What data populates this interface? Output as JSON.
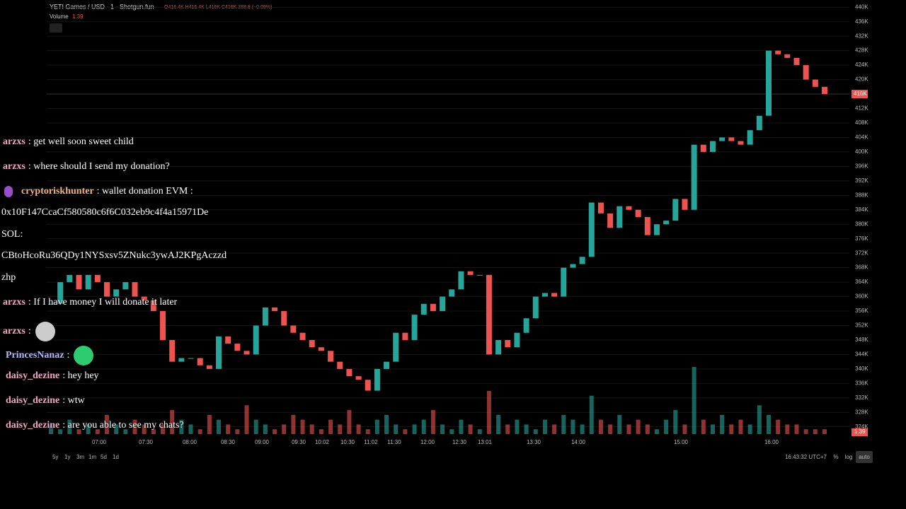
{
  "header": {
    "symbol": "YETI Games / USD · 1 · Shotgun.fun",
    "ohlc": "O416.4K H416.4K L416K C416K 388.8 (−0.09%)",
    "volume_label": "Volume",
    "volume_value": "1.39"
  },
  "chart": {
    "type": "candlestick",
    "up_color": "#26a69a",
    "down_color": "#ef5350",
    "ylim": [
      322,
      442
    ],
    "yticks": [
      {
        "value": 440,
        "label": "440K"
      },
      {
        "value": 436,
        "label": "436K"
      },
      {
        "value": 432,
        "label": "432K"
      },
      {
        "value": 428,
        "label": "428K"
      },
      {
        "value": 424,
        "label": "424K"
      },
      {
        "value": 420,
        "label": "420K"
      },
      {
        "value": 412,
        "label": "412K"
      },
      {
        "value": 408,
        "label": "408K"
      },
      {
        "value": 404,
        "label": "404K"
      },
      {
        "value": 400,
        "label": "400K"
      },
      {
        "value": 396,
        "label": "396K"
      },
      {
        "value": 392,
        "label": "392K"
      },
      {
        "value": 388,
        "label": "388K"
      },
      {
        "value": 384,
        "label": "384K"
      },
      {
        "value": 380,
        "label": "380K"
      },
      {
        "value": 376,
        "label": "376K"
      },
      {
        "value": 372,
        "label": "372K"
      },
      {
        "value": 368,
        "label": "368K"
      },
      {
        "value": 364,
        "label": "364K"
      },
      {
        "value": 360,
        "label": "360K"
      },
      {
        "value": 356,
        "label": "356K"
      },
      {
        "value": 352,
        "label": "352K"
      },
      {
        "value": 348,
        "label": "348K"
      },
      {
        "value": 344,
        "label": "344K"
      },
      {
        "value": 340,
        "label": "340K"
      },
      {
        "value": 336,
        "label": "336K"
      },
      {
        "value": 332,
        "label": "332K"
      },
      {
        "value": 328,
        "label": "328K"
      },
      {
        "value": 324,
        "label": "324K"
      }
    ],
    "last_price": {
      "value": 416,
      "label": "416K"
    },
    "x_labels": [
      "07:00",
      "07:30",
      "08:00",
      "08:30",
      "09:00",
      "09:30",
      "10:02",
      "10:30",
      "11:02",
      "11:30",
      "12:00",
      "12:30",
      "13:01",
      "13:30",
      "14:00",
      "15:00",
      "16:00"
    ],
    "closes": [
      358,
      364,
      366,
      362,
      366,
      364,
      360,
      362,
      364,
      360,
      359,
      356,
      348,
      342,
      343,
      343,
      341,
      340,
      349,
      347,
      345,
      344,
      352,
      357,
      356,
      352,
      350,
      348,
      346,
      345,
      342,
      340,
      338,
      337,
      334,
      340,
      342,
      350,
      348,
      355,
      358,
      356,
      360,
      362,
      367,
      366,
      366,
      344,
      348,
      346,
      350,
      354,
      360,
      361,
      360,
      368,
      369,
      371,
      386,
      383,
      379,
      385,
      384,
      382,
      377,
      380,
      381,
      387,
      384,
      402,
      400,
      403,
      404,
      403,
      402,
      406,
      410,
      428,
      427,
      426,
      424,
      420,
      418,
      416
    ],
    "volume": [
      2,
      1,
      3,
      1,
      2,
      1,
      4,
      2,
      1,
      3,
      2,
      1,
      2,
      5,
      3,
      2,
      1,
      4,
      3,
      2,
      1,
      6,
      3,
      2,
      1,
      2,
      4,
      3,
      2,
      1,
      3,
      2,
      5,
      2,
      1,
      3,
      4,
      2,
      1,
      2,
      3,
      5,
      2,
      1,
      3,
      2,
      1,
      9,
      4,
      2,
      3,
      2,
      1,
      3,
      2,
      4,
      3,
      2,
      8,
      3,
      2,
      4,
      2,
      3,
      2,
      1,
      3,
      5,
      2,
      14,
      3,
      2,
      4,
      2,
      3,
      2,
      6,
      4,
      3,
      2,
      2,
      1,
      1,
      1
    ]
  },
  "footer": {
    "ranges": [
      "5y",
      "1y",
      "3m",
      "1m",
      "5d",
      "1d"
    ],
    "clock": "16:43:32 UTC+7",
    "pct": "%",
    "log": "log",
    "auto": "auto"
  },
  "chat": [
    {
      "user": "arzxs",
      "text": ": get well soon sweet child",
      "color": "#f2a6c4"
    },
    {
      "user": "arzxs",
      "text": ": where should I send my donation?",
      "color": "#f2a6c4"
    },
    {
      "user": "cryptoriskhunter",
      "text": ": wallet donation EVM :",
      "color": "#f4b47c"
    },
    {
      "text": "0x10F147CcaCf580580c6f6C032eb9c4f4a15971De"
    },
    {
      "text": "SOL:"
    },
    {
      "text": "CBtoHcoRu36QDy1NYSxsv5ZNukc3ywAJ2KPgAczzd"
    },
    {
      "text": "zhp"
    },
    {
      "user": "arzxs",
      "text": ": If I have money I will donate it later",
      "color": "#f2a6c4"
    },
    {
      "user": "arzxs",
      "text": ":",
      "color": "#f2a6c4"
    },
    {
      "user": "PrincesNanaz",
      "text": ":",
      "color": "#b9b4ff"
    },
    {
      "user": "daisy_dezine",
      "text": ": hey hey",
      "color": "#f2a6c4"
    },
    {
      "user": "daisy_dezine",
      "text": ": wtw",
      "color": "#f2a6c4"
    },
    {
      "user": "daisy_dezine",
      "text": ": are you able to see my chats?",
      "color": "#f2a6c4"
    }
  ]
}
